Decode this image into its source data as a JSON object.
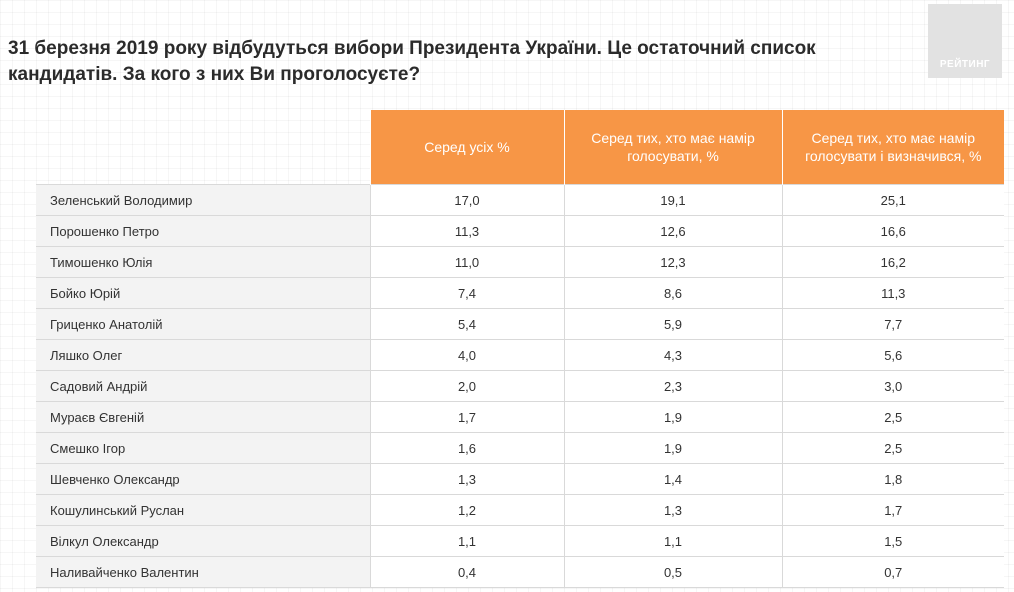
{
  "header": {
    "title": "31 березня 2019 року відбудуться вибори Президента України. Це остаточний список кандидатів. За кого з них Ви проголосуєте?",
    "logo_text": "РЕЙТИНГ"
  },
  "table": {
    "columns": [
      "Серед усіх %",
      "Серед тих, хто має намір голосувати, %",
      "Серед тих, хто має намір голосувати і визначився, %"
    ],
    "rows": [
      {
        "name": "Зеленський Володимир",
        "all": "17,0",
        "intend": "19,1",
        "decided": "25,1"
      },
      {
        "name": "Порошенко Петро",
        "all": "11,3",
        "intend": "12,6",
        "decided": "16,6"
      },
      {
        "name": "Тимошенко Юлія",
        "all": "11,0",
        "intend": "12,3",
        "decided": "16,2"
      },
      {
        "name": "Бойко Юрій",
        "all": "7,4",
        "intend": "8,6",
        "decided": "11,3"
      },
      {
        "name": "Гриценко Анатолій",
        "all": "5,4",
        "intend": "5,9",
        "decided": "7,7"
      },
      {
        "name": "Ляшко Олег",
        "all": "4,0",
        "intend": "4,3",
        "decided": "5,6"
      },
      {
        "name": "Садовий Андрій",
        "all": "2,0",
        "intend": "2,3",
        "decided": "3,0"
      },
      {
        "name": "Мураєв Євгеній",
        "all": "1,7",
        "intend": "1,9",
        "decided": "2,5"
      },
      {
        "name": "Смешко Ігор",
        "all": "1,6",
        "intend": "1,9",
        "decided": "2,5"
      },
      {
        "name": "Шевченко Олександр",
        "all": "1,3",
        "intend": "1,4",
        "decided": "1,8"
      },
      {
        "name": "Кошулинський Руслан",
        "all": "1,2",
        "intend": "1,3",
        "decided": "1,7"
      },
      {
        "name": "Вілкул Олександр",
        "all": "1,1",
        "intend": "1,1",
        "decided": "1,5"
      },
      {
        "name": "Наливайченко Валентин",
        "all": "0,4",
        "intend": "0,5",
        "decided": "0,7"
      }
    ]
  },
  "colors": {
    "header_orange": "#f79646",
    "name_cell_bg": "#f3f3f3",
    "logo_bg": "#e2e2e2"
  }
}
